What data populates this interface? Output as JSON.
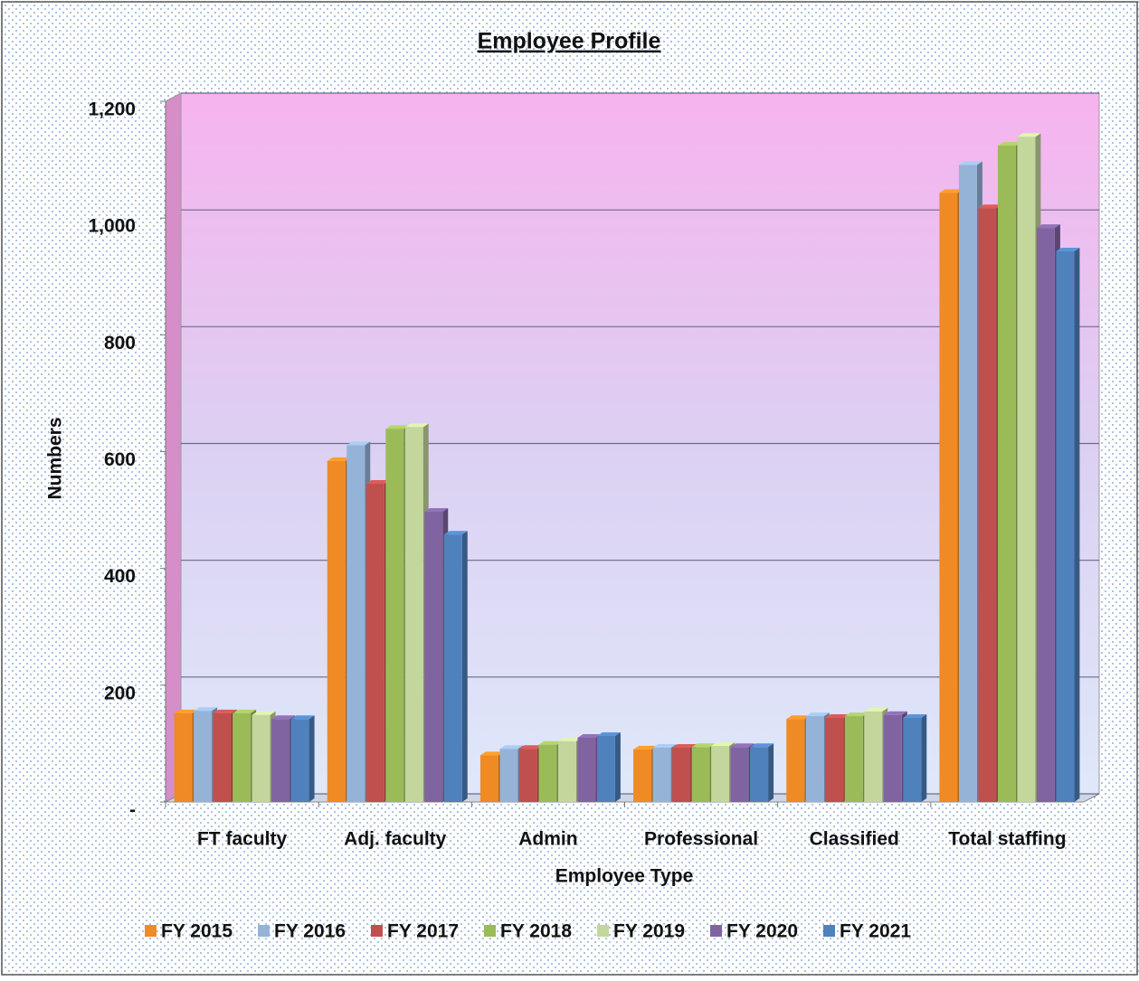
{
  "chart_data": {
    "type": "bar",
    "title": "Employee Profile",
    "x_label": "Employee Type",
    "y_label": "Numbers",
    "categories": [
      "FT faculty",
      "Adj. faculty",
      "Admin",
      "Professional",
      "Classified",
      "Total staffing"
    ],
    "series": [
      {
        "name": "FY 2015",
        "color": "#f08a24",
        "values": [
          152,
          584,
          80,
          90,
          142,
          1043
        ]
      },
      {
        "name": "FY 2016",
        "color": "#95b3d7",
        "values": [
          156,
          611,
          91,
          93,
          147,
          1091
        ]
      },
      {
        "name": "FY 2017",
        "color": "#c0504d",
        "values": [
          152,
          545,
          91,
          93,
          144,
          1017
        ]
      },
      {
        "name": "FY 2018",
        "color": "#9bbb59",
        "values": [
          152,
          639,
          98,
          94,
          147,
          1124
        ]
      },
      {
        "name": "FY 2019",
        "color": "#c3d69b",
        "values": [
          149,
          642,
          104,
          96,
          155,
          1139
        ]
      },
      {
        "name": "FY 2020",
        "color": "#8064a2",
        "values": [
          142,
          497,
          110,
          94,
          149,
          983
        ]
      },
      {
        "name": "FY 2021",
        "color": "#4f81bd",
        "values": [
          142,
          458,
          113,
          94,
          144,
          943
        ]
      }
    ],
    "ylim": [
      0,
      1200
    ],
    "yticks": [
      {
        "value": 0,
        "label": "-"
      },
      200,
      400,
      600,
      800,
      {
        "value": 1000,
        "label": "1,000"
      },
      {
        "value": 1200,
        "label": "1,200"
      }
    ],
    "grid": true,
    "legend": "bottom"
  }
}
